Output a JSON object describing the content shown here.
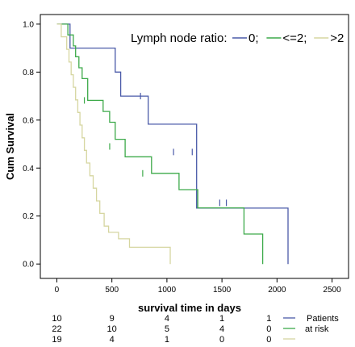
{
  "chart_data": {
    "type": "line",
    "subtype": "kaplan-meier-step",
    "xlabel": "survival time in days",
    "ylabel": "Cum Survival",
    "xlim": [
      -150,
      2650
    ],
    "ylim": [
      -0.06,
      1.04
    ],
    "x_ticks": [
      0,
      500,
      1000,
      1500,
      2000,
      2500
    ],
    "y_ticks": [
      0.0,
      0.2,
      0.4,
      0.6,
      0.8,
      1.0
    ],
    "y_tick_labels": [
      "0.0",
      "0.2",
      "0.4",
      "0.6",
      "0.8",
      "1.0"
    ],
    "grid": false,
    "legend": {
      "title": "Lymph node ratio:",
      "placement": "top-right",
      "entries": [
        {
          "label": "0;",
          "color": "#4A5AA8"
        },
        {
          "label": "<=2;",
          "color": "#3DAA4A"
        },
        {
          "label": ">2",
          "color": "#D6D6A0"
        }
      ]
    },
    "series": [
      {
        "name": "0",
        "color": "#4A5AA8",
        "x": [
          0,
          120,
          120,
          530,
          530,
          580,
          580,
          830,
          830,
          1270,
          1270,
          2100,
          2100
        ],
        "y": [
          1.0,
          1.0,
          0.9,
          0.9,
          0.8,
          0.8,
          0.7,
          0.7,
          0.583,
          0.583,
          0.233,
          0.233,
          0.0
        ],
        "censored": [
          [
            760,
            0.7
          ],
          [
            1060,
            0.467
          ],
          [
            1230,
            0.467
          ],
          [
            1480,
            0.255
          ],
          [
            1540,
            0.255
          ]
        ]
      },
      {
        "name": "<=2",
        "color": "#3DAA4A",
        "x": [
          0,
          100,
          100,
          150,
          150,
          170,
          170,
          200,
          200,
          230,
          230,
          280,
          280,
          420,
          420,
          480,
          480,
          530,
          530,
          620,
          620,
          860,
          860,
          1110,
          1110,
          1280,
          1280,
          1700,
          1700,
          1870,
          1870
        ],
        "y": [
          1.0,
          1.0,
          0.955,
          0.955,
          0.909,
          0.909,
          0.864,
          0.864,
          0.818,
          0.818,
          0.773,
          0.773,
          0.682,
          0.682,
          0.636,
          0.636,
          0.591,
          0.591,
          0.52,
          0.52,
          0.447,
          0.447,
          0.378,
          0.378,
          0.31,
          0.31,
          0.234,
          0.234,
          0.125,
          0.125,
          0.0
        ],
        "censored": [
          [
            250,
            0.682
          ],
          [
            480,
            0.49
          ],
          [
            780,
            0.378
          ]
        ]
      },
      {
        "name": ">2",
        "color": "#D6D6A0",
        "x": [
          0,
          40,
          40,
          90,
          90,
          110,
          110,
          130,
          130,
          150,
          150,
          170,
          170,
          190,
          190,
          210,
          210,
          230,
          230,
          250,
          250,
          270,
          270,
          300,
          300,
          330,
          330,
          360,
          360,
          390,
          390,
          430,
          430,
          470,
          470,
          560,
          560,
          660,
          660,
          700,
          700,
          1030,
          1030
        ],
        "y": [
          1.0,
          1.0,
          0.947,
          0.947,
          0.895,
          0.895,
          0.842,
          0.842,
          0.789,
          0.789,
          0.737,
          0.737,
          0.684,
          0.684,
          0.632,
          0.632,
          0.579,
          0.579,
          0.526,
          0.526,
          0.474,
          0.474,
          0.421,
          0.421,
          0.368,
          0.368,
          0.316,
          0.316,
          0.263,
          0.263,
          0.211,
          0.211,
          0.158,
          0.158,
          0.132,
          0.132,
          0.105,
          0.105,
          0.07,
          0.07,
          0.07,
          0.07,
          0.0
        ],
        "censored": []
      }
    ],
    "at_risk": {
      "label_line1": "Patients",
      "label_line2": "at risk",
      "rows": [
        {
          "group": "0",
          "color": "#4A5AA8",
          "values": [
            "10",
            "9",
            "4",
            "1",
            "1"
          ]
        },
        {
          "group": "<=2",
          "color": "#3DAA4A",
          "values": [
            "22",
            "10",
            "5",
            "4",
            "0"
          ]
        },
        {
          "group": ">2",
          "color": "#D6D6A0",
          "values": [
            "19",
            "4",
            "1",
            "0",
            "0"
          ]
        }
      ]
    }
  }
}
